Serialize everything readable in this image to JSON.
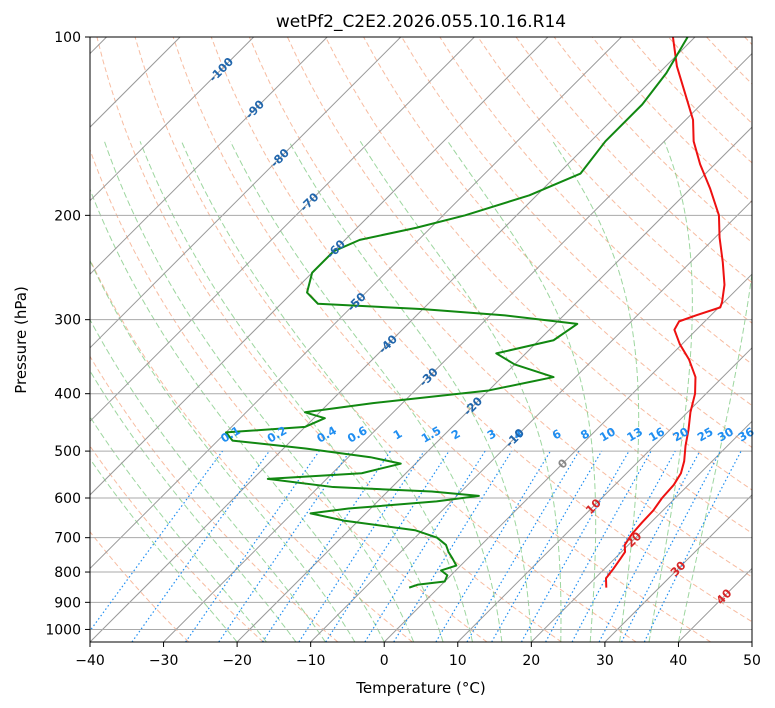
{
  "chart_data": {
    "type": "skew-t",
    "title": "wetPf2_C2E2.2026.055.10.16.R14",
    "xlabel": "Temperature (°C)",
    "ylabel": "Pressure (hPa)",
    "xlim": [
      -40,
      50
    ],
    "ylim": [
      1050,
      100
    ],
    "x_ticks": [
      -40,
      -30,
      -20,
      -10,
      0,
      10,
      20,
      30,
      40,
      50
    ],
    "y_ticks": [
      100,
      200,
      300,
      400,
      500,
      600,
      700,
      800,
      900,
      1000
    ],
    "skew_degrees": 45,
    "grid": true,
    "series": [
      {
        "name": "temperature",
        "color": "#ee1111",
        "points": [
          [
            22.8,
            850
          ],
          [
            21.5,
            820
          ],
          [
            21.2,
            790
          ],
          [
            20.8,
            760
          ],
          [
            20.5,
            740
          ],
          [
            19.5,
            720
          ],
          [
            19.0,
            690
          ],
          [
            18.8,
            660
          ],
          [
            18.7,
            630
          ],
          [
            18.2,
            600
          ],
          [
            18.0,
            570
          ],
          [
            17.4,
            545
          ],
          [
            16.2,
            520
          ],
          [
            14.3,
            490
          ],
          [
            12.5,
            460
          ],
          [
            10.4,
            430
          ],
          [
            8.5,
            400
          ],
          [
            6.3,
            375
          ],
          [
            3.0,
            350
          ],
          [
            -0.3,
            330
          ],
          [
            -3.0,
            312
          ],
          [
            -3.5,
            302
          ],
          [
            -2.0,
            295
          ],
          [
            0.2,
            286
          ],
          [
            -0.3,
            280
          ],
          [
            -2.3,
            262
          ],
          [
            -5.6,
            240
          ],
          [
            -9.4,
            218
          ],
          [
            -12.5,
            200
          ],
          [
            -17.4,
            180
          ],
          [
            -22.0,
            164
          ],
          [
            -26.0,
            150
          ],
          [
            -29.0,
            138
          ],
          [
            -33.5,
            125
          ],
          [
            -38.5,
            112
          ],
          [
            -43.0,
            100
          ]
        ]
      },
      {
        "name": "dewpoint",
        "color": "#118811",
        "points": [
          [
            -4.0,
            850
          ],
          [
            -3.2,
            840
          ],
          [
            0.0,
            830
          ],
          [
            -0.5,
            810
          ],
          [
            -2.0,
            795
          ],
          [
            -0.6,
            780
          ],
          [
            -2.0,
            760
          ],
          [
            -3.5,
            740
          ],
          [
            -4.8,
            720
          ],
          [
            -7.0,
            700
          ],
          [
            -11.0,
            680
          ],
          [
            -22.0,
            655
          ],
          [
            -27.5,
            637
          ],
          [
            -23.0,
            625
          ],
          [
            -12.0,
            608
          ],
          [
            -7.0,
            595
          ],
          [
            -14.0,
            585
          ],
          [
            -28.0,
            575
          ],
          [
            -38.0,
            557
          ],
          [
            -26.0,
            545
          ],
          [
            -22.0,
            525
          ],
          [
            -27.0,
            512
          ],
          [
            -37.0,
            495
          ],
          [
            -48.0,
            480
          ],
          [
            -50.0,
            465
          ],
          [
            -40.0,
            455
          ],
          [
            -38.5,
            440
          ],
          [
            -42.0,
            430
          ],
          [
            -34.0,
            415
          ],
          [
            -20.0,
            395
          ],
          [
            -13.0,
            375
          ],
          [
            -20.0,
            357
          ],
          [
            -24.0,
            342
          ],
          [
            -18.0,
            325
          ],
          [
            -17.0,
            305
          ],
          [
            -28.0,
            295
          ],
          [
            -40.0,
            288
          ],
          [
            -55.0,
            282
          ],
          [
            -58.0,
            270
          ],
          [
            -60.0,
            250
          ],
          [
            -60.0,
            230
          ],
          [
            -58.0,
            220
          ],
          [
            -52.0,
            210
          ],
          [
            -47.0,
            200
          ],
          [
            -41.0,
            185
          ],
          [
            -37.0,
            170
          ],
          [
            -38.0,
            150
          ],
          [
            -38.0,
            130
          ],
          [
            -39.0,
            115
          ],
          [
            -41.0,
            100
          ]
        ]
      }
    ],
    "isotherm_labels": [
      "-100",
      "-90",
      "-80",
      "-70",
      "-60",
      "-50",
      "-40",
      "-30",
      "-20",
      "-10",
      "0",
      "10",
      "20",
      "30",
      "40"
    ],
    "mixing_ratio_labels": [
      "0.1",
      "0.2",
      "0.4",
      "0.6",
      "1",
      "1.5",
      "2",
      "3",
      "4",
      "6",
      "8",
      "10",
      "13",
      "16",
      "20",
      "25",
      "30",
      "36"
    ],
    "mixing_ratio_values": [
      0.1,
      0.2,
      0.4,
      0.6,
      1,
      1.5,
      2,
      3,
      4,
      6,
      8,
      10,
      13,
      16,
      20,
      25,
      30,
      36
    ],
    "colors": {
      "isotherm_label_cold": "#2166ac",
      "isotherm_label_zero": "#888888",
      "isotherm_label_warm": "#d62728",
      "mixing_ratio": "#1f8ef1",
      "dry_adiabat": "#f4a582",
      "moist_adiabat": "#74c476",
      "grid": "#aaaaaa"
    }
  }
}
